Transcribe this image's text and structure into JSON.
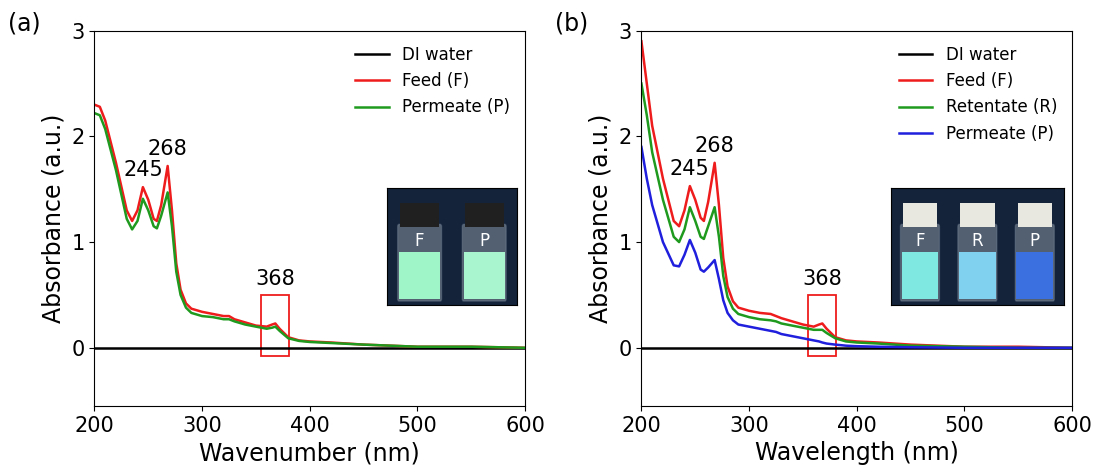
{
  "chart_data": [
    {
      "type": "line",
      "title": "(a)",
      "x_label": "Wavenumber (nm)",
      "y_label": "Absorbance (a.u.)",
      "x": [
        200,
        205,
        210,
        220,
        230,
        235,
        240,
        245,
        250,
        255,
        258,
        262,
        268,
        272,
        276,
        280,
        285,
        290,
        300,
        310,
        320,
        325,
        330,
        340,
        350,
        360,
        365,
        368,
        372,
        380,
        390,
        400,
        420,
        450,
        500,
        550,
        600
      ],
      "series": [
        {
          "name": "DI water",
          "color": "#000000",
          "values": [
            0,
            0,
            0,
            0,
            0,
            0,
            0,
            0,
            0,
            0,
            0,
            0,
            0,
            0,
            0,
            0,
            0,
            0,
            0,
            0,
            0,
            0,
            0,
            0,
            0,
            0,
            0,
            0,
            0,
            0,
            0,
            0,
            0,
            0,
            0,
            0,
            0
          ]
        },
        {
          "name": "Feed (F)",
          "color": "#ee1c1c",
          "values": [
            2.3,
            2.28,
            2.15,
            1.75,
            1.3,
            1.2,
            1.3,
            1.52,
            1.4,
            1.22,
            1.2,
            1.35,
            1.72,
            1.3,
            0.8,
            0.55,
            0.42,
            0.37,
            0.34,
            0.32,
            0.3,
            0.3,
            0.27,
            0.24,
            0.21,
            0.2,
            0.22,
            0.23,
            0.18,
            0.1,
            0.07,
            0.06,
            0.05,
            0.03,
            0.01,
            0.01,
            0.0
          ]
        },
        {
          "name": "Permeate (P)",
          "color": "#1f9a1f",
          "values": [
            2.22,
            2.2,
            2.07,
            1.68,
            1.22,
            1.12,
            1.2,
            1.41,
            1.3,
            1.15,
            1.13,
            1.25,
            1.47,
            1.15,
            0.72,
            0.5,
            0.38,
            0.33,
            0.3,
            0.29,
            0.27,
            0.27,
            0.25,
            0.22,
            0.2,
            0.18,
            0.19,
            0.2,
            0.16,
            0.09,
            0.065,
            0.055,
            0.045,
            0.03,
            0.01,
            0.01,
            0.0
          ]
        }
      ],
      "annotations": [
        {
          "text": "245",
          "x": 245
        },
        {
          "text": "268",
          "x": 268
        },
        {
          "text": "368",
          "x": 368,
          "type": "box",
          "color": "#ee1c1c"
        }
      ],
      "inset": {
        "labels": [
          "F",
          "P"
        ],
        "colors": [
          "#9ff5c8",
          "#a8f5d0"
        ]
      },
      "xlim": [
        200,
        600
      ],
      "xticks": [
        200,
        300,
        400,
        500,
        600
      ],
      "ylim": [
        -0.55,
        3
      ],
      "yticks": [
        0,
        1,
        2,
        3
      ],
      "legend": "upper right"
    },
    {
      "type": "line",
      "title": "(b)",
      "x_label": "Wavelength (nm)",
      "y_label": "Absorbance (a.u.)",
      "x": [
        200,
        205,
        210,
        220,
        230,
        235,
        240,
        245,
        250,
        255,
        258,
        262,
        268,
        272,
        276,
        280,
        285,
        290,
        300,
        310,
        320,
        325,
        330,
        340,
        350,
        360,
        365,
        368,
        372,
        380,
        390,
        400,
        420,
        450,
        500,
        550,
        600
      ],
      "series": [
        {
          "name": "DI water",
          "color": "#000000",
          "values": [
            0,
            0,
            0,
            0,
            0,
            0,
            0,
            0,
            0,
            0,
            0,
            0,
            0,
            0,
            0,
            0,
            0,
            0,
            0,
            0,
            0,
            0,
            0,
            0,
            0,
            0,
            0,
            0,
            0,
            0,
            0,
            0,
            0,
            0,
            0,
            0,
            0
          ]
        },
        {
          "name": "Feed (F)",
          "color": "#ee1c1c",
          "values": [
            2.9,
            2.5,
            2.1,
            1.6,
            1.2,
            1.15,
            1.3,
            1.53,
            1.4,
            1.23,
            1.2,
            1.38,
            1.75,
            1.35,
            0.85,
            0.58,
            0.44,
            0.38,
            0.35,
            0.33,
            0.32,
            0.3,
            0.28,
            0.25,
            0.22,
            0.2,
            0.22,
            0.23,
            0.18,
            0.1,
            0.07,
            0.06,
            0.05,
            0.03,
            0.01,
            0.01,
            0.0
          ]
        },
        {
          "name": "Retentate (R)",
          "color": "#1f9a1f",
          "values": [
            2.5,
            2.2,
            1.85,
            1.4,
            1.05,
            1.0,
            1.12,
            1.33,
            1.2,
            1.05,
            1.03,
            1.15,
            1.33,
            1.05,
            0.68,
            0.48,
            0.37,
            0.32,
            0.29,
            0.27,
            0.26,
            0.25,
            0.23,
            0.21,
            0.19,
            0.17,
            0.17,
            0.17,
            0.14,
            0.09,
            0.06,
            0.05,
            0.04,
            0.02,
            0.01,
            0.0,
            0.0
          ]
        },
        {
          "name": "Permeate (P)",
          "color": "#1f1fdd",
          "values": [
            1.9,
            1.6,
            1.35,
            1.0,
            0.78,
            0.77,
            0.88,
            1.02,
            0.9,
            0.74,
            0.72,
            0.76,
            0.83,
            0.65,
            0.45,
            0.33,
            0.26,
            0.22,
            0.2,
            0.18,
            0.16,
            0.15,
            0.13,
            0.11,
            0.09,
            0.07,
            0.06,
            0.05,
            0.04,
            0.03,
            0.02,
            0.015,
            0.01,
            0.005,
            0.0,
            0.0,
            0.0
          ]
        }
      ],
      "annotations": [
        {
          "text": "245",
          "x": 245
        },
        {
          "text": "268",
          "x": 268
        },
        {
          "text": "368",
          "x": 368,
          "type": "box",
          "color": "#ee1c1c"
        }
      ],
      "inset": {
        "labels": [
          "F",
          "R",
          "P"
        ],
        "colors": [
          "#7fe8e0",
          "#80d0f0",
          "#3a70e0"
        ]
      },
      "xlim": [
        200,
        600
      ],
      "xticks": [
        200,
        300,
        400,
        500,
        600
      ],
      "ylim": [
        -0.55,
        3
      ],
      "yticks": [
        0,
        1,
        2,
        3
      ],
      "legend": "upper right"
    }
  ]
}
